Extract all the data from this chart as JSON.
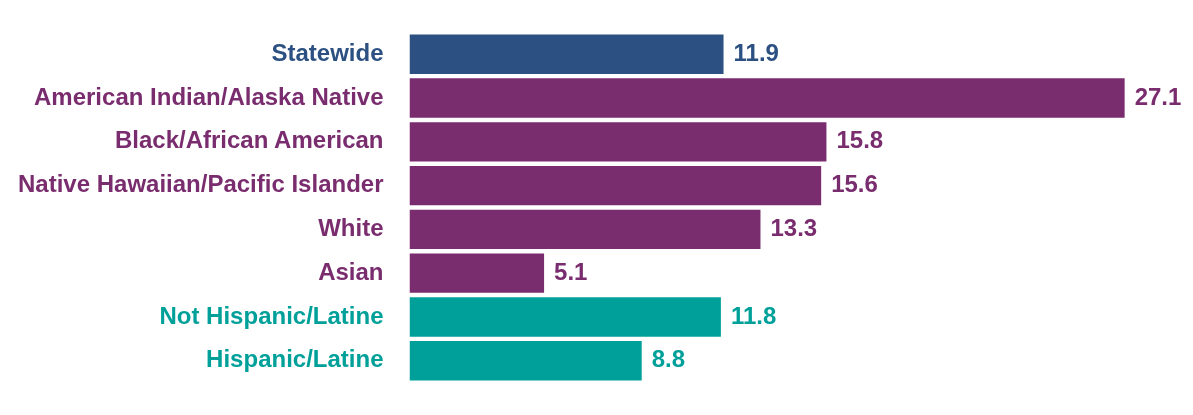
{
  "chart_data": {
    "type": "bar",
    "orientation": "horizontal",
    "categories": [
      "Statewide",
      "American Indian/Alaska Native",
      "Black/African American",
      "Native Hawaiian/Pacific Islander",
      "White",
      "Asian",
      "Not Hispanic/Latine",
      "Hispanic/Latine"
    ],
    "values": [
      11.9,
      27.1,
      15.8,
      15.6,
      13.3,
      5.1,
      11.8,
      8.8
    ],
    "colors": [
      "#2b5081",
      "#7a2d6e",
      "#7a2d6e",
      "#7a2d6e",
      "#7a2d6e",
      "#7a2d6e",
      "#00a09a",
      "#00a09a"
    ],
    "data_labels": true
  }
}
